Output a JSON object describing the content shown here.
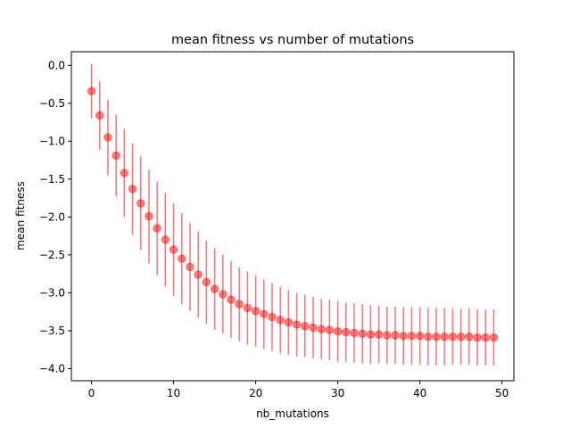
{
  "chart_data": {
    "type": "scatter",
    "title": "mean fitness vs number of mutations",
    "xlabel": "nb_mutations",
    "ylabel": "mean fitness",
    "xlim": [
      -2.45,
      51.45
    ],
    "ylim": [
      -4.16,
      0.18
    ],
    "xticks": [
      0,
      10,
      20,
      30,
      40,
      50
    ],
    "xtick_labels": [
      "0",
      "10",
      "20",
      "30",
      "40",
      "50"
    ],
    "yticks": [
      0.0,
      -0.5,
      -1.0,
      -1.5,
      -2.0,
      -2.5,
      -3.0,
      -3.5,
      -4.0
    ],
    "ytick_labels": [
      "0.0",
      "−0.5",
      "−1.0",
      "−1.5",
      "−2.0",
      "−2.5",
      "−3.0",
      "−3.5",
      "−4.0"
    ],
    "grid": false,
    "color": "#ff0000",
    "marker_alpha": 0.5,
    "series": [
      {
        "x": [
          0,
          1,
          2,
          3,
          4,
          5,
          6,
          7,
          8,
          9,
          10,
          11,
          12,
          13,
          14,
          15,
          16,
          17,
          18,
          19,
          20,
          21,
          22,
          23,
          24,
          25,
          26,
          27,
          28,
          29,
          30,
          31,
          32,
          33,
          34,
          35,
          36,
          37,
          38,
          39,
          40,
          41,
          42,
          43,
          44,
          45,
          46,
          47,
          48,
          49
        ],
        "y": [
          -0.34,
          -0.66,
          -0.95,
          -1.19,
          -1.42,
          -1.63,
          -1.82,
          -1.99,
          -2.15,
          -2.3,
          -2.43,
          -2.55,
          -2.66,
          -2.76,
          -2.86,
          -2.95,
          -3.02,
          -3.09,
          -3.15,
          -3.2,
          -3.24,
          -3.28,
          -3.32,
          -3.36,
          -3.39,
          -3.42,
          -3.44,
          -3.46,
          -3.48,
          -3.49,
          -3.51,
          -3.52,
          -3.53,
          -3.54,
          -3.55,
          -3.55,
          -3.56,
          -3.56,
          -3.57,
          -3.57,
          -3.57,
          -3.58,
          -3.58,
          -3.58,
          -3.58,
          -3.58,
          -3.58,
          -3.59,
          -3.59,
          -3.59
        ],
        "yerr": [
          0.36,
          0.45,
          0.5,
          0.54,
          0.58,
          0.6,
          0.62,
          0.62,
          0.62,
          0.62,
          0.61,
          0.6,
          0.58,
          0.57,
          0.55,
          0.54,
          0.52,
          0.51,
          0.49,
          0.48,
          0.47,
          0.46,
          0.45,
          0.44,
          0.43,
          0.42,
          0.41,
          0.41,
          0.4,
          0.4,
          0.4,
          0.39,
          0.39,
          0.39,
          0.39,
          0.38,
          0.38,
          0.38,
          0.38,
          0.38,
          0.38,
          0.38,
          0.38,
          0.38,
          0.37,
          0.37,
          0.37,
          0.37,
          0.37,
          0.37
        ]
      }
    ]
  }
}
